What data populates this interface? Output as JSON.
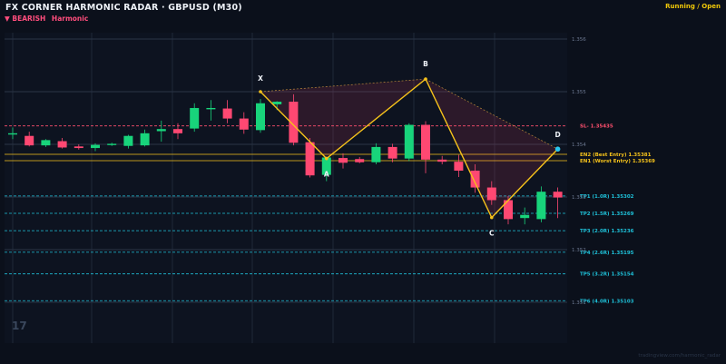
{
  "header": {
    "title": "FX CORNER HARMONIC RADAR  ·  GBPUSD (M30)",
    "status": "Running / Open",
    "signal_arrow": "▼",
    "signal_dir": "BEARISH",
    "signal_type": "Harmonic",
    "watermark": "tradingview.com/harmonic_radar",
    "logo": "17"
  },
  "colors": {
    "bg": "#0b101b",
    "bull": "#18d47b",
    "bear": "#ff4872",
    "pattern_line": "#f5c21b",
    "sl": "#ff4f6e",
    "entry": "#f5c21b",
    "tp": "#1ec0d8",
    "d_point": "#29c6ee"
  },
  "levels": [
    {
      "id": "sl",
      "label": "SL- 1.35435",
      "price": 1.35435,
      "style": "dash",
      "color": "#ff4f6e"
    },
    {
      "id": "en2",
      "label": "EN2 (Best Entry)  1.35381",
      "price": 1.35381,
      "style": "solid",
      "color": "#f5c21b"
    },
    {
      "id": "en1",
      "label": "EN1 (Worst Entry)  1.35369",
      "price": 1.35369,
      "style": "solid",
      "color": "#f5c21b"
    },
    {
      "id": "tp1",
      "label": "TP1 (1.0R)  1.35302",
      "price": 1.35302,
      "style": "dash",
      "color": "#1ec0d8"
    },
    {
      "id": "tp2",
      "label": "TP2 (1.5R)  1.35269",
      "price": 1.35269,
      "style": "dash",
      "color": "#1ec0d8"
    },
    {
      "id": "tp3",
      "label": "TP3 (2.0R)  1.35236",
      "price": 1.35236,
      "style": "dash",
      "color": "#1ec0d8"
    },
    {
      "id": "tp4",
      "label": "TP4 (2.6R)  1.35195",
      "price": 1.35195,
      "style": "dash",
      "color": "#1ec0d8"
    },
    {
      "id": "tp5",
      "label": "TP5 (3.2R)  1.35154",
      "price": 1.35154,
      "style": "dash",
      "color": "#1ec0d8"
    },
    {
      "id": "tp6",
      "label": "TP6 (4.0R)  1.35103",
      "price": 1.35103,
      "style": "dash",
      "color": "#1ec0d8"
    }
  ],
  "price_axis": [
    "1.356",
    "1.355",
    "1.354",
    "1.353",
    "1.352",
    "1.351"
  ],
  "axis_prices": [
    1.356,
    1.355,
    1.354,
    1.353,
    1.352,
    1.351
  ],
  "pattern": {
    "X": {
      "bar": 15,
      "price": 1.355
    },
    "A": {
      "bar": 19,
      "price": 1.35373
    },
    "B": {
      "bar": 25,
      "price": 1.35524
    },
    "C": {
      "bar": 29,
      "price": 1.35261
    },
    "D": {
      "bar": 33,
      "price": 1.35391
    }
  },
  "candles": [
    {
      "o": 1.35421,
      "h": 1.35432,
      "l": 1.3541,
      "c": 1.35421
    },
    {
      "o": 1.35416,
      "h": 1.35424,
      "l": 1.35396,
      "c": 1.35398
    },
    {
      "o": 1.35398,
      "h": 1.3541,
      "l": 1.35395,
      "c": 1.35408
    },
    {
      "o": 1.35406,
      "h": 1.35412,
      "l": 1.35392,
      "c": 1.35394
    },
    {
      "o": 1.35396,
      "h": 1.354,
      "l": 1.3539,
      "c": 1.35393
    },
    {
      "o": 1.35393,
      "h": 1.35402,
      "l": 1.35387,
      "c": 1.35399
    },
    {
      "o": 1.354,
      "h": 1.35403,
      "l": 1.35397,
      "c": 1.35401
    },
    {
      "o": 1.35397,
      "h": 1.35418,
      "l": 1.35392,
      "c": 1.35416
    },
    {
      "o": 1.35398,
      "h": 1.35428,
      "l": 1.35396,
      "c": 1.35421
    },
    {
      "o": 1.35425,
      "h": 1.35445,
      "l": 1.35405,
      "c": 1.35429
    },
    {
      "o": 1.35429,
      "h": 1.3544,
      "l": 1.3541,
      "c": 1.35421
    },
    {
      "o": 1.3543,
      "h": 1.35478,
      "l": 1.35424,
      "c": 1.35469
    },
    {
      "o": 1.35467,
      "h": 1.35484,
      "l": 1.35445,
      "c": 1.35469
    },
    {
      "o": 1.35468,
      "h": 1.35484,
      "l": 1.3544,
      "c": 1.35449
    },
    {
      "o": 1.35449,
      "h": 1.35461,
      "l": 1.3542,
      "c": 1.35428
    },
    {
      "o": 1.35427,
      "h": 1.35486,
      "l": 1.35422,
      "c": 1.35478
    },
    {
      "o": 1.35476,
      "h": 1.35482,
      "l": 1.35465,
      "c": 1.35481
    },
    {
      "o": 1.35481,
      "h": 1.35495,
      "l": 1.35398,
      "c": 1.35403
    },
    {
      "o": 1.35404,
      "h": 1.35412,
      "l": 1.35337,
      "c": 1.35341
    },
    {
      "o": 1.35342,
      "h": 1.35377,
      "l": 1.3533,
      "c": 1.35375
    },
    {
      "o": 1.35374,
      "h": 1.35383,
      "l": 1.35354,
      "c": 1.35365
    },
    {
      "o": 1.35372,
      "h": 1.35376,
      "l": 1.35364,
      "c": 1.35366
    },
    {
      "o": 1.35366,
      "h": 1.35402,
      "l": 1.35362,
      "c": 1.35395
    },
    {
      "o": 1.35395,
      "h": 1.35401,
      "l": 1.35366,
      "c": 1.35373
    },
    {
      "o": 1.35373,
      "h": 1.3544,
      "l": 1.35368,
      "c": 1.35437
    },
    {
      "o": 1.35437,
      "h": 1.35444,
      "l": 1.35345,
      "c": 1.35371
    },
    {
      "o": 1.35371,
      "h": 1.35378,
      "l": 1.35362,
      "c": 1.35367
    },
    {
      "o": 1.35367,
      "h": 1.3538,
      "l": 1.35338,
      "c": 1.3535
    },
    {
      "o": 1.3535,
      "h": 1.35362,
      "l": 1.35308,
      "c": 1.35318
    },
    {
      "o": 1.35318,
      "h": 1.3533,
      "l": 1.35285,
      "c": 1.35294
    },
    {
      "o": 1.35294,
      "h": 1.35302,
      "l": 1.35248,
      "c": 1.35258
    },
    {
      "o": 1.3526,
      "h": 1.3528,
      "l": 1.35248,
      "c": 1.35266
    },
    {
      "o": 1.35258,
      "h": 1.3532,
      "l": 1.35252,
      "c": 1.3531
    },
    {
      "o": 1.3531,
      "h": 1.35318,
      "l": 1.3526,
      "c": 1.35299
    }
  ]
}
